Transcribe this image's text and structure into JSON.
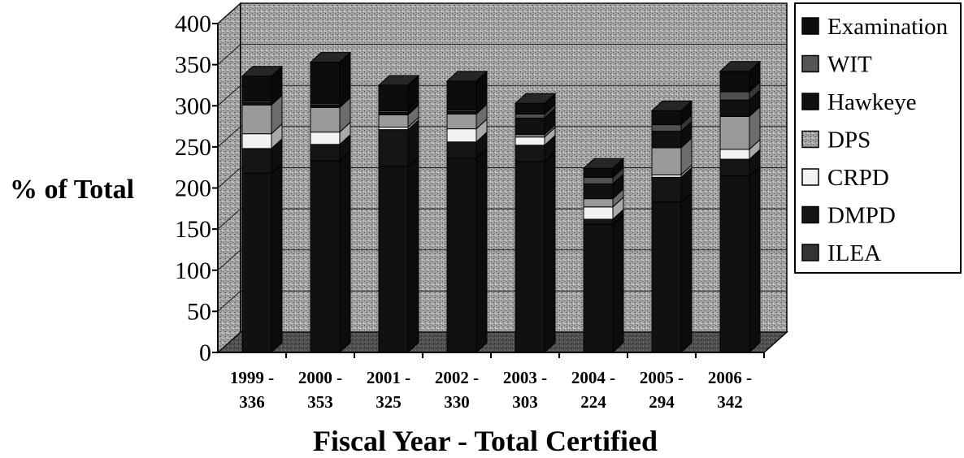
{
  "chart_data": {
    "type": "bar",
    "stacked": true,
    "three_d": true,
    "title": "",
    "xlabel": "Fiscal Year - Total Certified",
    "ylabel": "% of Total",
    "ylim": [
      0,
      400
    ],
    "yticks": [
      0,
      50,
      100,
      150,
      200,
      250,
      300,
      350,
      400
    ],
    "grid": true,
    "legend_position": "right",
    "categories": [
      [
        "1999 -",
        "336"
      ],
      [
        "2000 -",
        "353"
      ],
      [
        "2001 -",
        "325"
      ],
      [
        "2002 -",
        "330"
      ],
      [
        "2003 -",
        "303"
      ],
      [
        "2004 -",
        "224"
      ],
      [
        "2005 -",
        "294"
      ],
      [
        "2006 -",
        "342"
      ]
    ],
    "series": [
      {
        "name": "ILEA",
        "color": "#111111",
        "values": [
          218,
          233,
          226,
          236,
          232,
          156,
          183,
          215
        ]
      },
      {
        "name": "DMPD",
        "color": "#151515",
        "values": [
          30,
          20,
          45,
          20,
          20,
          6,
          30,
          20
        ]
      },
      {
        "name": "CRPD",
        "color": "#f2f2f2",
        "values": [
          18,
          15,
          3,
          16,
          10,
          15,
          3,
          12
        ]
      },
      {
        "name": "DPS",
        "color": "#9a9a9a",
        "values": [
          35,
          30,
          15,
          18,
          3,
          10,
          33,
          40
        ]
      },
      {
        "name": "Hawkeye",
        "color": "#111111",
        "values": [
          3,
          3,
          3,
          3,
          20,
          18,
          20,
          20
        ]
      },
      {
        "name": "WIT",
        "color": "#505050",
        "values": [
          2,
          2,
          2,
          2,
          5,
          8,
          8,
          10
        ]
      },
      {
        "name": "Examination",
        "color": "#0d0d0d",
        "values": [
          30,
          50,
          31,
          35,
          13,
          11,
          17,
          25
        ]
      }
    ]
  }
}
